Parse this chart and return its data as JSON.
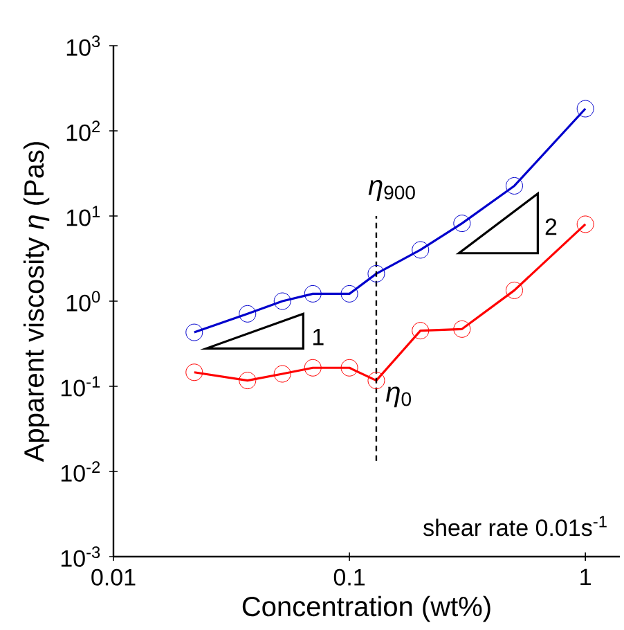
{
  "chart_data": {
    "type": "line",
    "xlabel": "Concentration (wt%)",
    "ylabel": "Apparent viscosity *η* (Pas)",
    "x": [
      0.022,
      0.037,
      0.052,
      0.07,
      0.1,
      0.13,
      0.2,
      0.3,
      0.5,
      1.0
    ],
    "series": [
      {
        "color": "#0000cc",
        "values": [
          0.43,
          0.71,
          1.0,
          1.22,
          1.22,
          2.1,
          4.0,
          8.2,
          22.6,
          182
        ]
      },
      {
        "color": "#ff0000",
        "values": [
          0.146,
          0.117,
          0.14,
          0.165,
          0.165,
          0.117,
          0.45,
          0.47,
          1.34,
          8.0
        ]
      }
    ],
    "log": "xy",
    "xlim": [
      0.01,
      1.4
    ],
    "ylim": [
      0.001,
      1000
    ],
    "xticks": [
      0.01,
      0.1,
      1
    ],
    "yticks": [
      {
        "value": 0.001,
        "label": "10$^{-3}$"
      },
      {
        "value": 0.01,
        "label": "10$^{-2}$"
      },
      {
        "value": 0.1,
        "label": "10$^{-1}$"
      },
      {
        "value": 1,
        "label": "10$^{0}$"
      },
      {
        "value": 10,
        "label": "10$^{1}$"
      },
      {
        "value": 100,
        "label": "10$^{2}$"
      },
      {
        "value": 1000,
        "label": "10$^{3}$"
      }
    ],
    "ref_lines": [
      {
        "axis": "x",
        "value": 0.13,
        "line_style": "dashed",
        "color": "#000000"
      }
    ],
    "annotations": [
      "*η*$_{900}$",
      "*η*$_{0}$",
      "1",
      "2",
      "shear rate 0.01s$^{-1}$"
    ],
    "marker": "circle",
    "line_style": "solid",
    "grid": false
  }
}
